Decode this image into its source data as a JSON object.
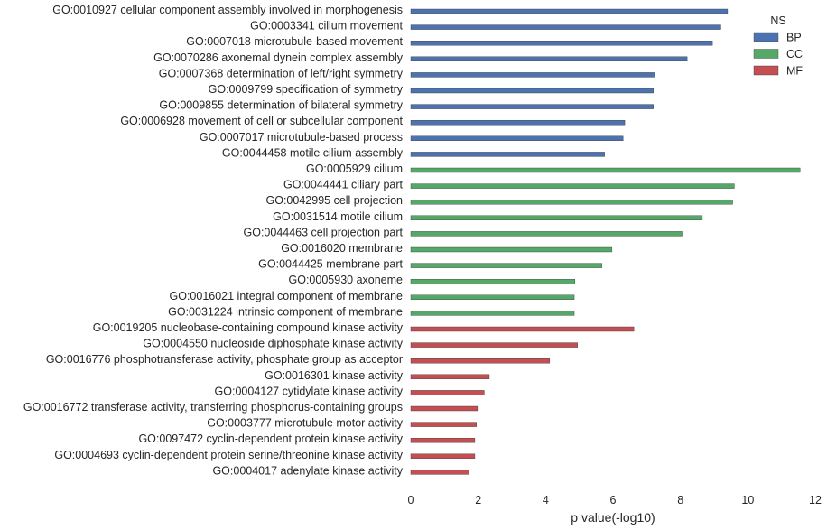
{
  "chart_data": {
    "type": "bar",
    "orientation": "horizontal",
    "xlabel": "p value(-log10)",
    "ylabel": "",
    "xlim": [
      0,
      12
    ],
    "xticks": [
      "0",
      "2",
      "4",
      "6",
      "8",
      "10",
      "12"
    ],
    "grid": false,
    "legend": {
      "title": "NS",
      "placement": "top-right",
      "entries": [
        {
          "name": "BP",
          "color": "#4C72B0"
        },
        {
          "name": "CC",
          "color": "#55A868"
        },
        {
          "name": "MF",
          "color": "#C44E52"
        }
      ]
    },
    "categories": [
      "GO:0010927 cellular component assembly involved in morphogenesis",
      "GO:0003341 cilium movement",
      "GO:0007018 microtubule-based movement",
      "GO:0070286 axonemal dynein complex assembly",
      "GO:0007368 determination of left/right symmetry",
      "GO:0009799 specification of symmetry",
      "GO:0009855 determination of bilateral symmetry",
      "GO:0006928 movement of cell or subcellular component",
      "GO:0007017 microtubule-based process",
      "GO:0044458 motile cilium assembly",
      "GO:0005929 cilium",
      "GO:0044441 ciliary part",
      "GO:0042995 cell projection",
      "GO:0031514 motile cilium",
      "GO:0044463 cell projection part",
      "GO:0016020 membrane",
      "GO:0044425 membrane part",
      "GO:0005930 axoneme",
      "GO:0016021 integral component of membrane",
      "GO:0031224 intrinsic component of membrane",
      "GO:0019205 nucleobase-containing compound kinase activity",
      "GO:0004550 nucleoside diphosphate kinase activity",
      "GO:0016776 phosphotransferase activity, phosphate group as acceptor",
      "GO:0016301 kinase activity",
      "GO:0004127 cytidylate kinase activity",
      "GO:0016772 transferase activity, transferring phosphorus-containing groups",
      "GO:0003777 microtubule motor activity",
      "GO:0097472 cyclin-dependent protein kinase activity",
      "GO:0004693 cyclin-dependent protein serine/threonine kinase activity",
      "GO:0004017 adenylate kinase activity"
    ],
    "groups": [
      "BP",
      "BP",
      "BP",
      "BP",
      "BP",
      "BP",
      "BP",
      "BP",
      "BP",
      "BP",
      "CC",
      "CC",
      "CC",
      "CC",
      "CC",
      "CC",
      "CC",
      "CC",
      "CC",
      "CC",
      "MF",
      "MF",
      "MF",
      "MF",
      "MF",
      "MF",
      "MF",
      "MF",
      "MF",
      "MF"
    ],
    "values": [
      9.4,
      9.2,
      8.95,
      8.2,
      7.25,
      7.2,
      7.2,
      6.35,
      6.3,
      5.75,
      11.55,
      9.6,
      9.55,
      8.65,
      8.05,
      5.97,
      5.67,
      4.87,
      4.85,
      4.85,
      6.62,
      4.95,
      4.12,
      2.33,
      2.18,
      1.98,
      1.95,
      1.9,
      1.9,
      1.72
    ]
  }
}
